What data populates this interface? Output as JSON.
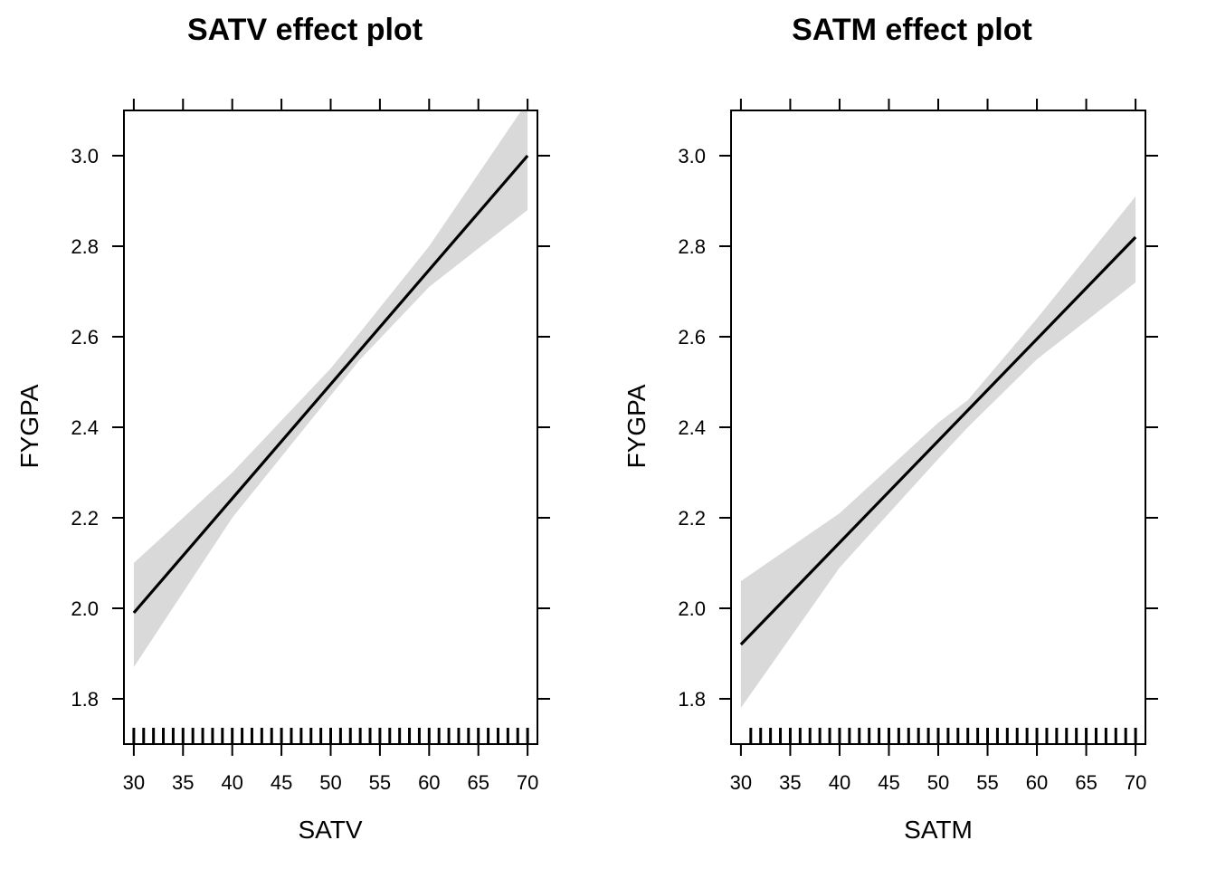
{
  "chart_data": [
    {
      "type": "line",
      "title": "SATV effect plot",
      "xlabel": "SATV",
      "ylabel": "FYGPA",
      "xlim": [
        29,
        71
      ],
      "ylim": [
        1.7,
        3.1
      ],
      "xticks": [
        "30",
        "35",
        "40",
        "45",
        "50",
        "55",
        "60",
        "65",
        "70"
      ],
      "yticks": [
        "1.8",
        "2.0",
        "2.2",
        "2.4",
        "2.6",
        "2.8",
        "3.0"
      ],
      "grid": false,
      "series": [
        {
          "x": [
            30,
            70
          ],
          "y": [
            1.99,
            3.0
          ]
        }
      ],
      "confidence_band": {
        "color": "#d9d9d9",
        "x": [
          30,
          40,
          50,
          53,
          60,
          70
        ],
        "lower": [
          1.87,
          2.2,
          2.47,
          2.55,
          2.71,
          2.88
        ],
        "upper": [
          2.1,
          2.3,
          2.53,
          2.61,
          2.8,
          3.12
        ]
      },
      "rug": [
        30,
        31,
        32,
        33,
        34,
        35,
        36,
        37,
        38,
        39,
        40,
        41,
        42,
        43,
        44,
        45,
        46,
        47,
        48,
        49,
        50,
        51,
        52,
        53,
        54,
        55,
        56,
        57,
        58,
        59,
        60,
        61,
        62,
        63,
        64,
        65,
        66,
        67,
        68,
        69,
        70
      ]
    },
    {
      "type": "line",
      "title": "SATM effect plot",
      "xlabel": "SATM",
      "ylabel": "FYGPA",
      "xlim": [
        29,
        71
      ],
      "ylim": [
        1.7,
        3.1
      ],
      "xticks": [
        "30",
        "35",
        "40",
        "45",
        "50",
        "55",
        "60",
        "65",
        "70"
      ],
      "yticks": [
        "1.8",
        "2.0",
        "2.2",
        "2.4",
        "2.6",
        "2.8",
        "3.0"
      ],
      "grid": false,
      "series": [
        {
          "x": [
            30,
            70
          ],
          "y": [
            1.92,
            2.82
          ]
        }
      ],
      "confidence_band": {
        "color": "#d9d9d9",
        "x": [
          30,
          40,
          50,
          53,
          60,
          70
        ],
        "lower": [
          1.78,
          2.09,
          2.33,
          2.4,
          2.55,
          2.72
        ],
        "upper": [
          2.06,
          2.21,
          2.41,
          2.46,
          2.64,
          2.91
        ]
      },
      "rug": [
        31,
        32,
        33,
        34,
        35,
        36,
        37,
        38,
        39,
        40,
        41,
        42,
        43,
        44,
        45,
        46,
        47,
        48,
        49,
        50,
        51,
        52,
        53,
        54,
        55,
        56,
        57,
        58,
        59,
        60,
        61,
        62,
        63,
        64,
        65,
        66,
        67,
        68,
        69,
        70
      ]
    }
  ]
}
